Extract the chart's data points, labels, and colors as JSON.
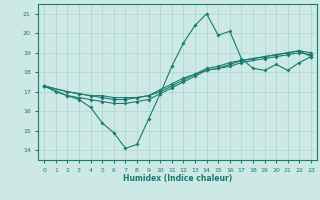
{
  "xlabel": "Humidex (Indice chaleur)",
  "xlim": [
    -0.5,
    23.5
  ],
  "ylim": [
    13.5,
    21.5
  ],
  "yticks": [
    14,
    15,
    16,
    17,
    18,
    19,
    20,
    21
  ],
  "xticks": [
    0,
    1,
    2,
    3,
    4,
    5,
    6,
    7,
    8,
    9,
    10,
    11,
    12,
    13,
    14,
    15,
    16,
    17,
    18,
    19,
    20,
    21,
    22,
    23
  ],
  "background_color": "#cce9e5",
  "grid_color": "#b0d4d0",
  "line_color": "#1a7a6e",
  "line1_x": [
    0,
    1,
    2,
    3,
    4,
    5,
    6,
    7,
    8,
    9,
    10,
    11,
    12,
    13,
    14,
    15,
    16,
    17,
    18,
    19,
    20,
    21,
    22,
    23
  ],
  "line1_y": [
    17.3,
    17.0,
    16.8,
    16.6,
    16.2,
    15.4,
    14.9,
    14.1,
    14.3,
    15.6,
    16.9,
    18.3,
    19.5,
    20.4,
    21.0,
    19.9,
    20.1,
    18.7,
    18.2,
    18.1,
    18.4,
    18.1,
    18.5,
    18.8
  ],
  "line2_x": [
    0,
    2,
    3,
    4,
    5,
    6,
    7,
    8,
    9,
    10,
    11,
    12,
    13,
    14,
    15,
    16,
    17,
    19,
    20,
    21,
    22,
    23
  ],
  "line2_y": [
    17.3,
    16.8,
    16.7,
    16.6,
    16.5,
    16.4,
    16.4,
    16.5,
    16.6,
    16.9,
    17.2,
    17.5,
    17.8,
    18.1,
    18.2,
    18.3,
    18.5,
    18.7,
    18.8,
    18.9,
    19.0,
    18.9
  ],
  "line3_x": [
    0,
    2,
    3,
    4,
    5,
    6,
    7,
    8,
    9,
    10,
    11,
    12,
    13,
    14,
    15,
    16,
    17,
    19,
    20,
    21,
    22,
    23
  ],
  "line3_y": [
    17.3,
    17.0,
    16.9,
    16.8,
    16.7,
    16.6,
    16.6,
    16.7,
    16.8,
    17.0,
    17.3,
    17.6,
    17.9,
    18.1,
    18.2,
    18.4,
    18.6,
    18.8,
    18.9,
    19.0,
    19.1,
    18.8
  ],
  "line4_x": [
    0,
    2,
    3,
    4,
    5,
    6,
    7,
    8,
    9,
    10,
    11,
    12,
    13,
    14,
    15,
    16,
    17,
    18,
    19,
    20,
    21,
    22,
    23
  ],
  "line4_y": [
    17.3,
    17.0,
    16.9,
    16.8,
    16.8,
    16.7,
    16.7,
    16.7,
    16.8,
    17.1,
    17.4,
    17.7,
    17.9,
    18.2,
    18.3,
    18.5,
    18.6,
    18.7,
    18.8,
    18.9,
    19.0,
    19.1,
    19.0
  ]
}
